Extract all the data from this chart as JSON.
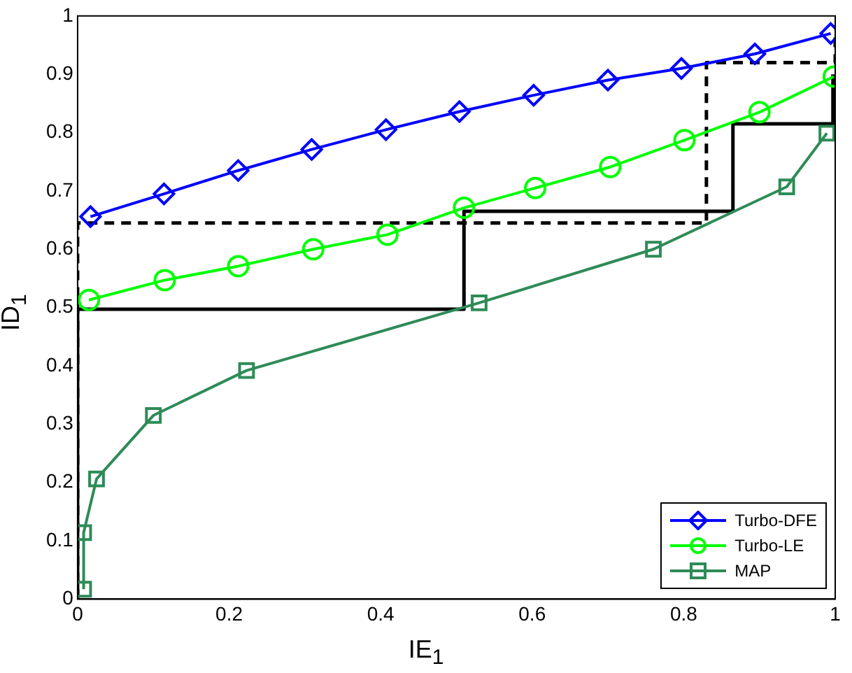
{
  "chart_data": {
    "type": "line",
    "xlabel": "IE$_{1}$",
    "ylabel": "ID$_{1}$",
    "xlim": [
      0,
      1
    ],
    "ylim": [
      0,
      1
    ],
    "xticks": [
      0,
      0.2,
      0.4,
      0.6,
      0.8,
      1
    ],
    "yticks": [
      0,
      0.1,
      0.2,
      0.3,
      0.4,
      0.5,
      0.6,
      0.7,
      0.8,
      0.9,
      1
    ],
    "grid": false,
    "legend": "bottom right",
    "series": [
      {
        "name": "Turbo-DFE",
        "color": "#0000ff",
        "marker": "diamond",
        "x": [
          0.017,
          0.114,
          0.212,
          0.309,
          0.407,
          0.504,
          0.602,
          0.7,
          0.797,
          0.894,
          0.994
        ],
        "values": [
          0.656,
          0.695,
          0.735,
          0.771,
          0.805,
          0.836,
          0.864,
          0.89,
          0.91,
          0.935,
          0.97
        ]
      },
      {
        "name": "Turbo-LE",
        "color": "#00ff00",
        "marker": "circle",
        "x": [
          0.015,
          0.115,
          0.212,
          0.311,
          0.409,
          0.51,
          0.604,
          0.703,
          0.801,
          0.9,
          0.998
        ],
        "values": [
          0.513,
          0.547,
          0.571,
          0.6,
          0.625,
          0.671,
          0.705,
          0.741,
          0.787,
          0.835,
          0.896
        ]
      },
      {
        "name": "MAP",
        "color": "#2e8b57",
        "marker": "square",
        "x": [
          0.008,
          0.008,
          0.025,
          0.1,
          0.223,
          0.53,
          0.76,
          0.936,
          0.989
        ],
        "values": [
          0.017,
          0.114,
          0.206,
          0.315,
          0.392,
          0.508,
          0.6,
          0.707,
          0.799
        ]
      },
      {
        "color": "#000000",
        "marker": "none",
        "line_style": "solid",
        "x": [
          0,
          0,
          0.51,
          0.51,
          0.865,
          0.865,
          0.997,
          0.997
        ],
        "values": [
          0,
          0.497,
          0.497,
          0.665,
          0.665,
          0.815,
          0.815,
          0.9
        ]
      },
      {
        "color": "#000000",
        "marker": "none",
        "line_style": "dashed",
        "x": [
          0,
          0,
          0.83,
          0.83,
          1,
          1
        ],
        "values": [
          0,
          0.645,
          0.645,
          0.92,
          0.92,
          0.97
        ]
      }
    ]
  }
}
